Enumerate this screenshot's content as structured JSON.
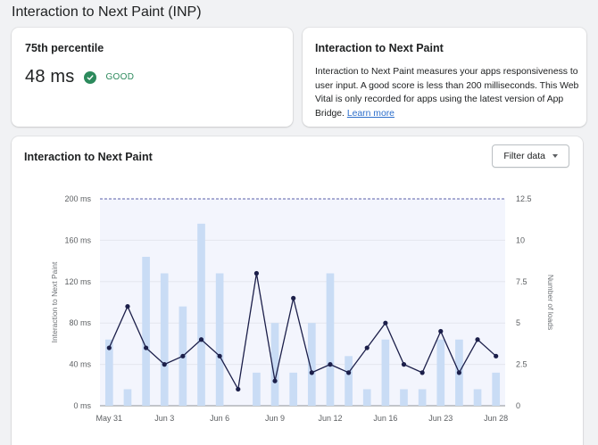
{
  "page": {
    "title": "Interaction to Next Paint (INP)"
  },
  "percentile_card": {
    "heading": "75th percentile",
    "value": "48 ms",
    "status": "GOOD",
    "status_icon": "check-circle-icon",
    "status_color": "#2c8a5c"
  },
  "info_card": {
    "heading": "Interaction to Next Paint",
    "description": "Interaction to Next Paint measures your apps responsiveness to user input. A good score is less than 200 milliseconds. This Web Vital is only recorded for apps using the latest version of App Bridge.",
    "link_text": "Learn more"
  },
  "chart_card": {
    "heading": "Interaction to Next Paint",
    "filter_label": "Filter data",
    "filter_icon": "caret-down-icon"
  },
  "colors": {
    "bar": "#c9dcf5",
    "line": "#1c1f4a",
    "threshold": "#5a5fa8",
    "good_zone": "#f3f5fd"
  },
  "chart_data": {
    "type": "bar+line",
    "x_tick_labels": [
      "May 31",
      "Jun 3",
      "Jun 6",
      "Jun 9",
      "Jun 12",
      "Jun 16",
      "Jun 23",
      "Jun 28"
    ],
    "y_left": {
      "label": "Interaction to Next Paint",
      "ticks": [
        "0 ms",
        "40 ms",
        "80 ms",
        "120 ms",
        "160 ms",
        "200 ms"
      ],
      "min": 0,
      "max": 200,
      "unit": "ms"
    },
    "y_right": {
      "label": "Number of loads",
      "ticks": [
        "0",
        "2.5",
        "5",
        "7.5",
        "10",
        "12.5"
      ],
      "min": 0,
      "max": 12.5
    },
    "threshold": {
      "value": 200,
      "style": "dashed"
    },
    "bars_loads": [
      4,
      1,
      9,
      8,
      6,
      11,
      8,
      0,
      2,
      5,
      2,
      5,
      8,
      3,
      1,
      4,
      1,
      1,
      4,
      4,
      1,
      2
    ],
    "line_inp_ms": [
      56,
      96,
      56,
      40,
      48,
      64,
      48,
      16,
      128,
      24,
      104,
      32,
      40,
      32,
      56,
      80,
      40,
      32,
      72,
      32,
      64,
      48
    ],
    "grid": true
  }
}
